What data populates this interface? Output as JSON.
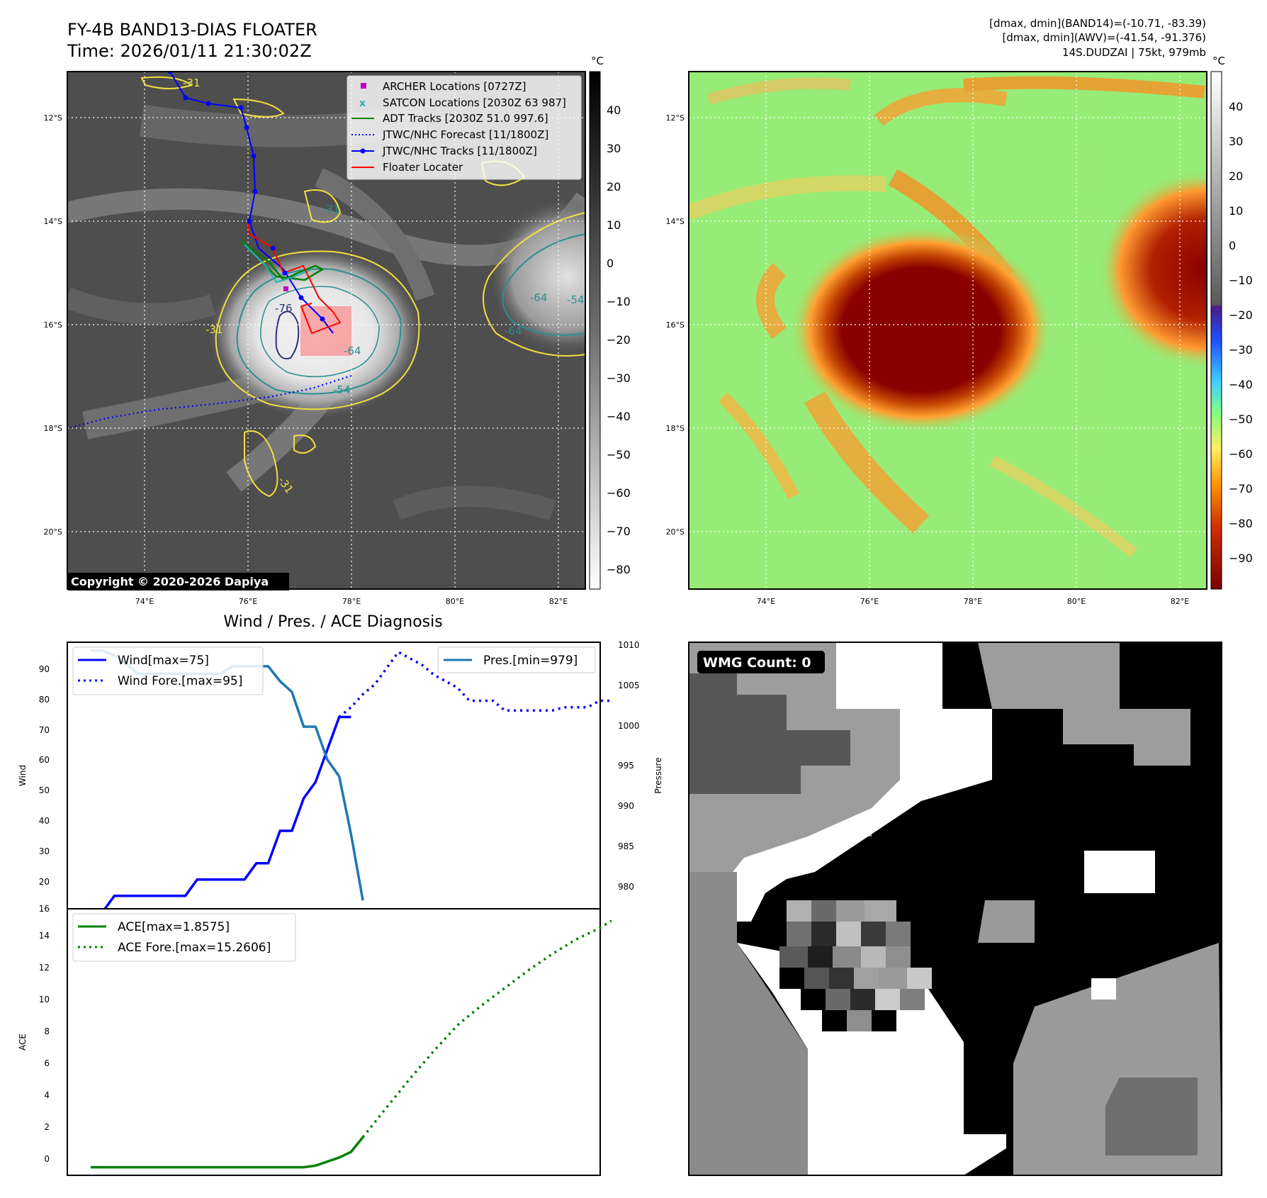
{
  "header": {
    "title_line1": "FY-4B BAND13-DIAS FLOATER",
    "title_line2": "Time: 2026/01/11 21:30:02Z",
    "info_line1": "[dmax, dmin](BAND14)=(-10.71, -83.39)",
    "info_line2": "[dmax, dmin](AWV)=(-41.54, -91.376)",
    "info_line3": "14S.DUDZAI | 75kt, 979mb"
  },
  "copyright": "Copyright © 2020-2026 Dapiya",
  "map_axes": {
    "lat_ticks": [
      "12°S",
      "14°S",
      "16°S",
      "18°S",
      "20°S"
    ],
    "lon_ticks": [
      "74°E",
      "76°E",
      "78°E",
      "80°E",
      "82°E"
    ]
  },
  "colorbar_gray": {
    "unit": "°C",
    "ticks": [
      "40",
      "30",
      "20",
      "10",
      "0",
      "−10",
      "−20",
      "−30",
      "−40",
      "−50",
      "−60",
      "−70",
      "−80"
    ]
  },
  "colorbar_color": {
    "unit": "°C",
    "ticks": [
      "40",
      "30",
      "20",
      "10",
      "0",
      "−10",
      "−20",
      "−30",
      "−40",
      "−50",
      "−60",
      "−70",
      "−80",
      "−90"
    ]
  },
  "legend_map": {
    "items": [
      {
        "label": "ARCHER Locations [0727Z]",
        "color": "#c000c0"
      },
      {
        "label": "SATCON Locations [2030Z 63 987]",
        "color": "#1fb3b3"
      },
      {
        "label": "ADT Tracks [2030Z 51.0 997.6]",
        "color": "#008000"
      },
      {
        "label": "JTWC/NHC Forecast [11/1800Z]",
        "color": "#0000ff"
      },
      {
        "label": "JTWC/NHC Tracks [11/1800Z]",
        "color": "#0000ff"
      },
      {
        "label": "Floater Locater",
        "color": "#ff0000"
      }
    ]
  },
  "contour_labels": [
    "-31",
    "-31",
    "-31",
    "-31",
    "-76",
    "-54",
    "-64",
    "-54",
    "-64",
    "-64"
  ],
  "wind_panel": {
    "title": "Wind / Pres. / ACE Diagnosis",
    "ylabel_left": "Wind",
    "ylabel_right": "Pressure",
    "yticks_left": [
      "20",
      "30",
      "40",
      "50",
      "60",
      "70",
      "80",
      "90"
    ],
    "ytick_bottom": "16",
    "yticks_right": [
      "980",
      "985",
      "990",
      "995",
      "1000",
      "1005",
      "1010"
    ],
    "legend_wind": "Wind[max=75]",
    "legend_wind_fore": "Wind Fore.[max=95]",
    "legend_pres": "Pres.[min=979]"
  },
  "ace_panel": {
    "ylabel": "ACE",
    "yticks": [
      "0",
      "2",
      "4",
      "6",
      "8",
      "10",
      "12",
      "14"
    ],
    "legend_ace": "ACE[max=1.8575]",
    "legend_ace_fore": "ACE Fore.[max=15.2606]"
  },
  "wmg_panel": {
    "badge": "WMG Count: 0"
  },
  "colors": {
    "wind": "#0000ff",
    "pressure": "#1f77b4",
    "ace": "#008000",
    "contour_yellow": "#f0e040",
    "contour_teal": "#2a8f8f"
  },
  "chart_data": [
    {
      "type": "line",
      "title": "Wind / Pres. / ACE Diagnosis",
      "ylabel": "Wind",
      "ylim": [
        16,
        98
      ],
      "y2label": "Pressure",
      "y2lim": [
        978,
        1010.2
      ],
      "series": [
        {
          "name": "Wind[max=75]",
          "axis": "left",
          "style": "solid",
          "x": [
            0,
            1,
            2,
            3,
            4,
            5,
            6,
            7,
            8,
            9,
            10,
            11,
            12,
            13,
            14,
            15,
            16,
            17,
            18,
            19,
            20,
            21,
            22
          ],
          "y": [
            15,
            15,
            20,
            20,
            20,
            20,
            20,
            20,
            20,
            25,
            25,
            25,
            25,
            25,
            30,
            30,
            40,
            40,
            50,
            55,
            65,
            75,
            75
          ]
        },
        {
          "name": "Wind Fore.[max=95]",
          "axis": "left",
          "style": "dotted",
          "x": [
            21,
            22,
            23,
            24,
            25,
            26,
            27,
            28,
            29,
            30,
            31,
            32,
            33,
            34,
            35,
            36,
            37,
            38,
            39,
            40,
            41,
            42,
            43,
            44
          ],
          "y": [
            75,
            78,
            82,
            85,
            90,
            95,
            93,
            91,
            88,
            86,
            84,
            80,
            80,
            80,
            77,
            77,
            77,
            77,
            77,
            78,
            78,
            78,
            80,
            80
          ]
        },
        {
          "name": "Pres.[min=979]",
          "axis": "right",
          "style": "solid",
          "x": [
            0,
            1,
            2,
            3,
            4,
            5,
            6,
            7,
            8,
            9,
            10,
            11,
            12,
            13,
            14,
            15,
            16,
            17,
            18,
            19,
            20,
            21
          ],
          "y": [
            1009.2,
            1009.2,
            1008.6,
            1007.6,
            1006.4,
            1006.4,
            1006.4,
            1006.4,
            1006.4,
            1006.4,
            1006.4,
            1006.4,
            1007.3,
            1007.3,
            1007.3,
            1007.3,
            1005.5,
            1004.2,
            1000.0,
            1000.0,
            996.0,
            994.0
          ]
        },
        {
          "name": "Pres.[min=979] (cont.)",
          "axis": "right",
          "style": "solid",
          "x": [
            21,
            22,
            23
          ],
          "y": [
            994.0,
            987.0,
            979.0
          ]
        }
      ]
    },
    {
      "type": "line",
      "ylabel": "ACE",
      "ylim": [
        -0.5,
        16
      ],
      "series": [
        {
          "name": "ACE[max=1.8575]",
          "style": "solid",
          "x": [
            0,
            2,
            4,
            6,
            8,
            10,
            12,
            14,
            16,
            18,
            19,
            20,
            21,
            22,
            23
          ],
          "y": [
            0,
            0,
            0,
            0,
            0,
            0,
            0,
            0,
            0,
            0,
            0.1,
            0.35,
            0.6,
            0.95,
            1.86
          ]
        },
        {
          "name": "ACE Fore.[max=15.2606]",
          "style": "dotted",
          "x": [
            23,
            25,
            27,
            29,
            31,
            33,
            35,
            37,
            39,
            41,
            43,
            44
          ],
          "y": [
            1.86,
            3.7,
            5.5,
            7.2,
            8.8,
            10.0,
            11.1,
            12.2,
            13.2,
            14.1,
            14.8,
            15.26
          ]
        }
      ]
    }
  ]
}
